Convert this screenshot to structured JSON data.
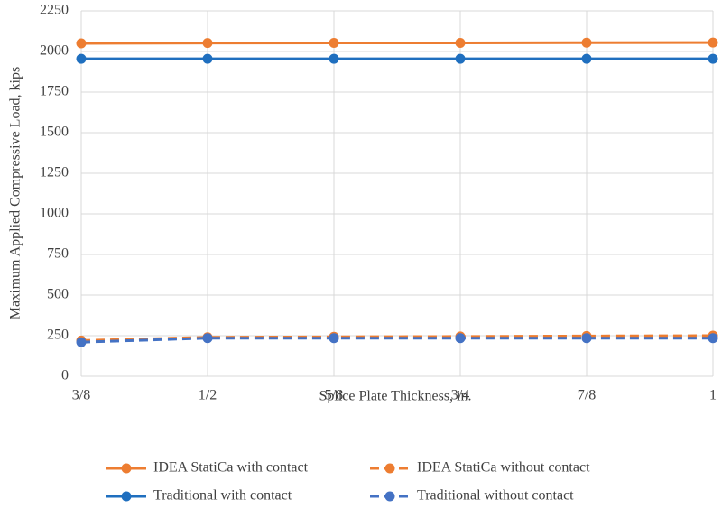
{
  "chart_data": {
    "type": "line",
    "x_label": "Splice Plate Thickness, in.",
    "y_label": "Maximum Applied Compressive Load, kips",
    "categories": [
      "3/8",
      "1/2",
      "5/8",
      "3/4",
      "7/8",
      "1"
    ],
    "ylim": [
      0,
      2250
    ],
    "yticks": [
      0,
      250,
      500,
      750,
      1000,
      1250,
      1500,
      1750,
      2000,
      2250
    ],
    "grid": true,
    "legend": "bottom",
    "series": [
      {
        "name": "IDEA StatiCa with contact",
        "color": "#ed7d31",
        "dashed": false,
        "values": [
          2050,
          2052,
          2053,
          2053,
          2054,
          2055
        ]
      },
      {
        "name": "IDEA StatiCa without contact",
        "color": "#ed7d31",
        "dashed": true,
        "values": [
          220,
          240,
          243,
          245,
          248,
          250
        ]
      },
      {
        "name": "Traditional with contact",
        "color": "#1f6fbf",
        "dashed": false,
        "values": [
          1955,
          1955,
          1955,
          1955,
          1955,
          1955
        ]
      },
      {
        "name": "Traditional without contact",
        "color": "#4472c4",
        "dashed": true,
        "values": [
          210,
          235,
          235,
          235,
          235,
          235
        ]
      }
    ]
  }
}
